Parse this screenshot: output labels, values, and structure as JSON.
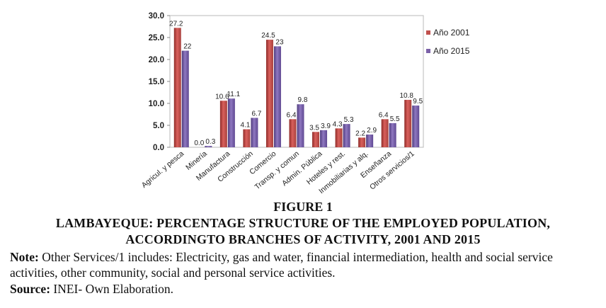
{
  "chart_data": {
    "type": "bar",
    "categories": [
      "Agricul. y pesca",
      "Minería",
      "Manufactura",
      "Construcción",
      "Comercio",
      "Transp. y comun",
      "Admin. Pública",
      "Hoteles y rest.",
      "Inmobiliarias y alq.",
      "Enseñanza",
      "Otros servicios/1"
    ],
    "series": [
      {
        "name": "Año 2001",
        "color": "#c0504d",
        "values": [
          27.2,
          0.0,
          10.6,
          4.1,
          24.5,
          6.4,
          3.5,
          4.3,
          2.2,
          6.4,
          10.8
        ],
        "labels": [
          "27.2",
          "0.0",
          "10.6",
          "4.1",
          "24.5",
          "6.4",
          "3.5",
          "4.3",
          "2.2",
          "6.4",
          "10.8"
        ]
      },
      {
        "name": "Año 2015",
        "color": "#7b61a8",
        "values": [
          22,
          0.3,
          11.1,
          6.7,
          23,
          9.8,
          3.9,
          5.3,
          2.9,
          5.5,
          9.5
        ],
        "labels": [
          "22",
          "0.3",
          "11.1",
          "6.7",
          "23",
          "9.8",
          "3.9",
          "5.3",
          "2.9",
          "5.5",
          "9.5"
        ]
      }
    ],
    "yticks": [
      "0.0",
      "5.0",
      "10.0",
      "15.0",
      "20.0",
      "25.0",
      "30.0"
    ],
    "ylim": [
      0,
      30
    ],
    "grid": false,
    "legend_position": "right"
  },
  "caption": {
    "figure_label": "FIGURE 1",
    "title_line1": "LAMBAYEQUE: PERCENTAGE STRUCTURE OF THE EMPLOYED POPULATION,",
    "title_line2": "ACCORDINGTO BRANCHES OF ACTIVITY, 2001 AND 2015"
  },
  "note": {
    "label": "Note:",
    "text": " Other Services/1 includes: Electricity, gas and water, financial intermediation, health and social service activities, other community, social and personal service activities."
  },
  "source": {
    "label": "Source:",
    "text": " INEI- Own Elaboration."
  }
}
